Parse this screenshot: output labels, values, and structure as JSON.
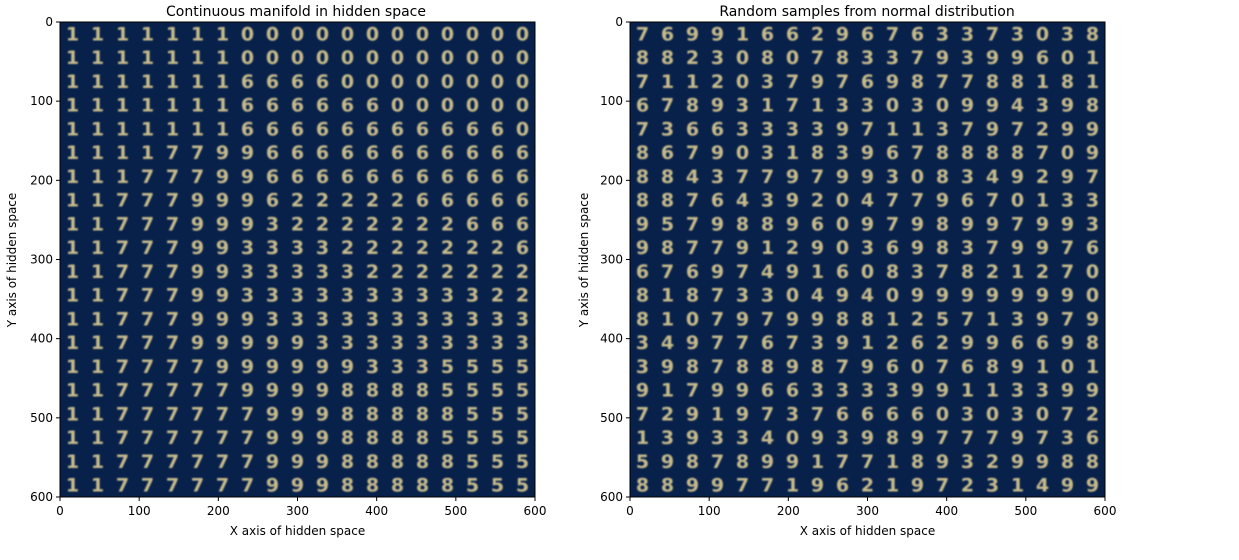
{
  "chart_data": [
    {
      "type": "heatmap",
      "title": "Continuous manifold in hidden space",
      "xlabel": "X axis of hidden space",
      "ylabel": "Y axis of hidden space",
      "xlim": [
        0,
        600
      ],
      "ylim": [
        600,
        0
      ],
      "xticks": [
        0,
        100,
        200,
        300,
        400,
        500,
        600
      ],
      "yticks": [
        0,
        100,
        200,
        300,
        400,
        500,
        600
      ],
      "background_color": "#08214a",
      "digit_color": "#e8d596",
      "grid": false,
      "digit_rows": [
        "1111111000000000000",
        "1111111000000000000",
        "1111111666600000000",
        "1111111666666000000",
        "1111111666666666660",
        "1111779966666666666",
        "1117779966666666666",
        "1177799962222266666",
        "1177799932222222666",
        "1177799333322222226",
        "1177799333332222222",
        "1177799333333333322",
        "1177799933333333333",
        "1177799999333333333",
        "1177779999993335555",
        "1177777999988885555",
        "1177777799988888555",
        "1177777799988885555",
        "1177777799988888555",
        "1177777799988888555"
      ]
    },
    {
      "type": "heatmap",
      "title": "Random samples from normal distribution",
      "xlabel": "X axis of hidden space",
      "ylabel": "Y axis of hidden space",
      "xlim": [
        0,
        600
      ],
      "ylim": [
        600,
        0
      ],
      "xticks": [
        0,
        100,
        200,
        300,
        400,
        500,
        600
      ],
      "yticks": [
        0,
        100,
        200,
        300,
        400,
        500,
        600
      ],
      "background_color": "#08214a",
      "digit_color": "#e8d596",
      "grid": false,
      "digit_rows": [
        "7699166296763373038",
        "8823080783379399601",
        "7112037976987788181",
        "6789317133030994398",
        "7366333397113797299",
        "8679031839678888709",
        "8843779799308349297",
        "8876439204779670133",
        "9579889609798997993",
        "9877912903698379976",
        "6769749160837821270",
        "8187330494099999990",
        "8107979988125713979",
        "3497767391262996698",
        "3987889879607689101",
        "9179966333399113399",
        "7291973766660303072",
        "1393340939897779736",
        "5987899177189329988",
        "8899771962197231499"
      ]
    }
  ]
}
